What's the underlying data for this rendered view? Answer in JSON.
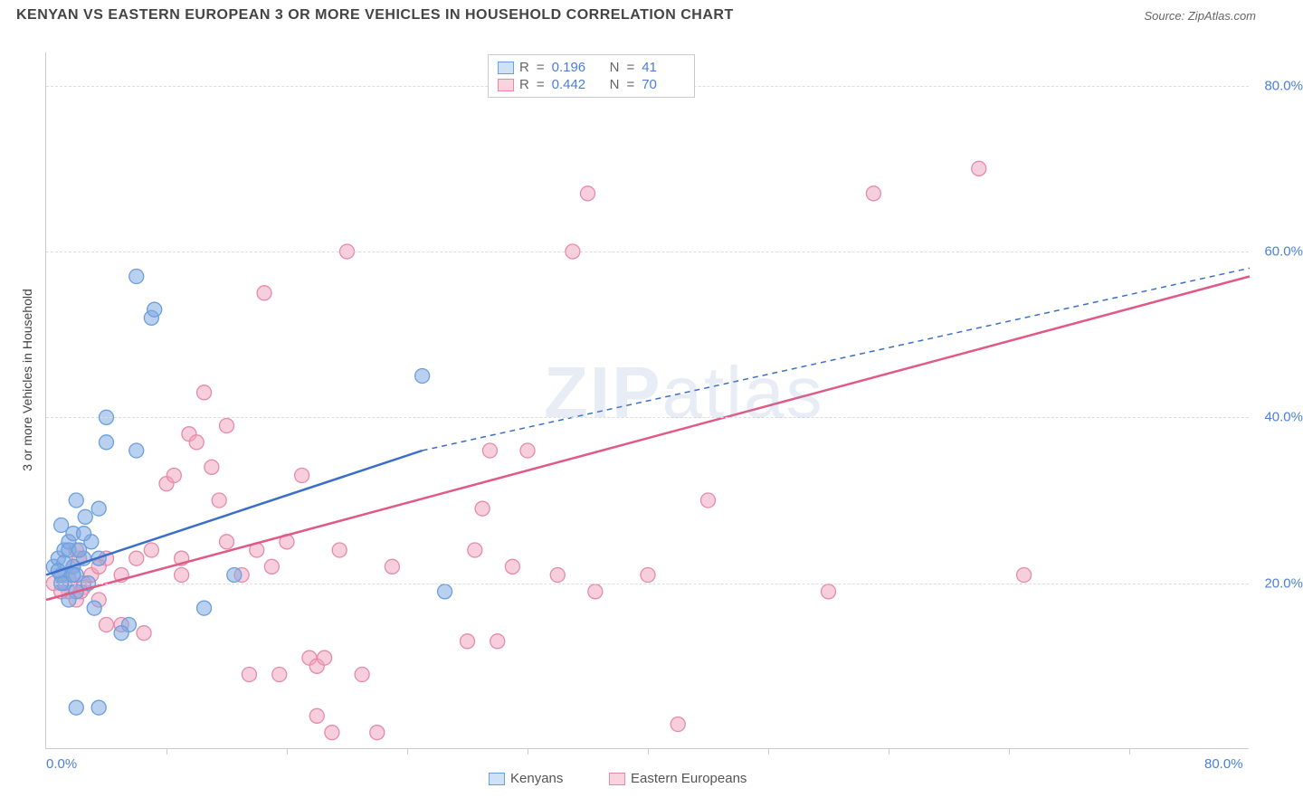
{
  "header": {
    "title": "KENYAN VS EASTERN EUROPEAN 3 OR MORE VEHICLES IN HOUSEHOLD CORRELATION CHART",
    "source": "Source: ZipAtlas.com"
  },
  "axes": {
    "y_label": "3 or more Vehicles in Household",
    "xlim": [
      0,
      80
    ],
    "ylim": [
      0,
      84
    ],
    "x_ticks": [
      0,
      80
    ],
    "x_tick_labels": [
      "0.0%",
      "80.0%"
    ],
    "x_minor_ticks": [
      8,
      16,
      24,
      32,
      40,
      48,
      56,
      64,
      72
    ],
    "y_ticks": [
      20,
      40,
      60,
      80
    ],
    "y_tick_labels": [
      "20.0%",
      "40.0%",
      "60.0%",
      "80.0%"
    ],
    "grid_color": "#dddddd"
  },
  "watermark": {
    "text_bold": "ZIP",
    "text_light": "atlas"
  },
  "stats_box": {
    "rows": [
      {
        "swatch_fill": "#cfe0f7",
        "swatch_border": "#6a9fe0",
        "r": "0.196",
        "n": "41"
      },
      {
        "swatch_fill": "#f9d3dd",
        "swatch_border": "#e78aa7",
        "r": "0.442",
        "n": "70"
      }
    ],
    "labels": {
      "r": "R",
      "n": "N",
      "eq": "="
    }
  },
  "legend": {
    "items": [
      {
        "swatch_fill": "#cfe0f7",
        "swatch_border": "#6a9fe0",
        "label": "Kenyans"
      },
      {
        "swatch_fill": "#f9d3dd",
        "swatch_border": "#e78aa7",
        "label": "Eastern Europeans"
      }
    ]
  },
  "series": {
    "kenyans": {
      "color_fill": "rgba(130,170,225,0.55)",
      "color_stroke": "#6a9fe0",
      "marker_radius": 8,
      "trend": {
        "x1": 0,
        "y1": 21,
        "x2": 25,
        "y2": 36,
        "x2_ext": 80,
        "y2_ext": 58,
        "stroke": "#3a6fc8",
        "stroke_width": 2.5
      },
      "points": [
        [
          0.5,
          22
        ],
        [
          0.8,
          23
        ],
        [
          1.0,
          21
        ],
        [
          1.2,
          24
        ],
        [
          1.2,
          20
        ],
        [
          1.5,
          25
        ],
        [
          1.8,
          22
        ],
        [
          1.8,
          26
        ],
        [
          2.0,
          19
        ],
        [
          2.0,
          21
        ],
        [
          1.0,
          27
        ],
        [
          2.5,
          23
        ],
        [
          2.6,
          28
        ],
        [
          2.8,
          20
        ],
        [
          2.0,
          30
        ],
        [
          3.0,
          25
        ],
        [
          1.5,
          18
        ],
        [
          3.2,
          17
        ],
        [
          3.5,
          23
        ],
        [
          3.5,
          29
        ],
        [
          1.2,
          22.5
        ],
        [
          4.0,
          37
        ],
        [
          4.0,
          40
        ],
        [
          6.0,
          57
        ],
        [
          7.0,
          52
        ],
        [
          7.2,
          53
        ],
        [
          6.0,
          36
        ],
        [
          5.5,
          15
        ],
        [
          5.0,
          14
        ],
        [
          2.0,
          5
        ],
        [
          3.5,
          5
        ],
        [
          10.5,
          17
        ],
        [
          12.5,
          21
        ],
        [
          25.0,
          45
        ],
        [
          26.5,
          19
        ],
        [
          1.5,
          24
        ],
        [
          1.0,
          20
        ],
        [
          0.8,
          21.5
        ],
        [
          2.2,
          24
        ],
        [
          1.8,
          21
        ],
        [
          2.5,
          26
        ]
      ]
    },
    "eastern_europeans": {
      "color_fill": "rgba(240,160,185,0.5)",
      "color_stroke": "#e78aa7",
      "marker_radius": 8,
      "trend": {
        "x1": 0,
        "y1": 18,
        "x2": 80,
        "y2": 57,
        "stroke": "#e05a85",
        "stroke_width": 2.5
      },
      "points": [
        [
          0.5,
          20
        ],
        [
          1.0,
          21
        ],
        [
          1.5,
          19
        ],
        [
          1.8,
          22
        ],
        [
          2.0,
          18
        ],
        [
          1.5,
          20.5
        ],
        [
          2.2,
          23
        ],
        [
          2.5,
          19.5
        ],
        [
          3.0,
          21
        ],
        [
          2.5,
          20
        ],
        [
          2.0,
          24
        ],
        [
          3.5,
          18
        ],
        [
          4.0,
          23
        ],
        [
          4.0,
          15
        ],
        [
          3.5,
          22
        ],
        [
          5.0,
          21
        ],
        [
          5.0,
          15
        ],
        [
          6.0,
          23
        ],
        [
          6.5,
          14
        ],
        [
          7.0,
          24
        ],
        [
          8.0,
          32
        ],
        [
          8.5,
          33
        ],
        [
          9.0,
          21
        ],
        [
          9.0,
          23
        ],
        [
          9.5,
          38
        ],
        [
          10.0,
          37
        ],
        [
          10.5,
          43
        ],
        [
          11.0,
          34
        ],
        [
          11.5,
          30
        ],
        [
          12.0,
          25
        ],
        [
          12.0,
          39
        ],
        [
          13.0,
          21
        ],
        [
          13.5,
          9
        ],
        [
          14.0,
          24
        ],
        [
          14.5,
          55
        ],
        [
          15.0,
          22
        ],
        [
          15.5,
          9
        ],
        [
          16.0,
          25
        ],
        [
          17.0,
          33
        ],
        [
          17.5,
          11
        ],
        [
          18.0,
          10
        ],
        [
          18.0,
          4
        ],
        [
          19.0,
          2
        ],
        [
          18.5,
          11
        ],
        [
          19.5,
          24
        ],
        [
          20.0,
          60
        ],
        [
          21.0,
          9
        ],
        [
          22.0,
          2
        ],
        [
          23.0,
          22
        ],
        [
          28.0,
          13
        ],
        [
          28.5,
          24
        ],
        [
          29.0,
          29
        ],
        [
          29.5,
          36
        ],
        [
          30.0,
          13
        ],
        [
          31.0,
          22
        ],
        [
          32.0,
          36
        ],
        [
          34.0,
          21
        ],
        [
          35.0,
          60
        ],
        [
          36.0,
          67
        ],
        [
          36.5,
          19
        ],
        [
          40.0,
          21
        ],
        [
          42.0,
          3
        ],
        [
          44.0,
          30
        ],
        [
          52.0,
          19
        ],
        [
          55.0,
          67
        ],
        [
          62.0,
          70
        ],
        [
          65.0,
          21
        ],
        [
          1.0,
          19
        ],
        [
          1.2,
          20
        ],
        [
          2.3,
          19
        ]
      ]
    }
  }
}
